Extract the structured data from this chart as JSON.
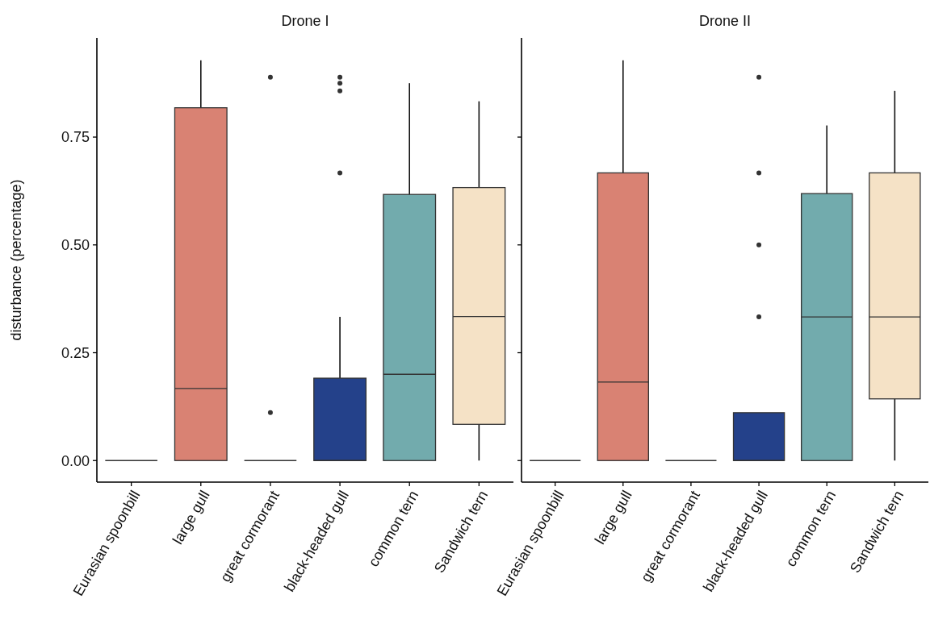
{
  "chart_data": [
    {
      "type": "box",
      "title": "Drone I",
      "ylabel": "disturbance (percentage)",
      "categories": [
        "Eurasian spoonbill",
        "large gull",
        "great cormorant",
        "black-headed gull",
        "common tern",
        "Sandwich tern"
      ],
      "colors": [
        "#333333",
        "#d98273",
        "#333333",
        "#24418a",
        "#72abad",
        "#f5e2c6"
      ],
      "boxes": [
        {
          "low": 0,
          "q1": 0,
          "median": 0,
          "q3": 0,
          "high": 0
        },
        {
          "low": 0,
          "q1": 0,
          "median": 0.167,
          "q3": 0.818,
          "high": 0.928
        },
        {
          "low": 0,
          "q1": 0,
          "median": 0,
          "q3": 0,
          "high": 0,
          "outliers": [
            0.111,
            0.889
          ]
        },
        {
          "low": 0,
          "q1": 0,
          "median": 0,
          "q3": 0.191,
          "high": 0.333,
          "outliers": [
            0.667,
            0.857,
            0.875,
            0.889
          ]
        },
        {
          "low": 0,
          "q1": 0,
          "median": 0.2,
          "q3": 0.617,
          "high": 0.875
        },
        {
          "low": 0,
          "q1": 0.084,
          "median": 0.334,
          "q3": 0.633,
          "high": 0.833
        }
      ],
      "ylim": [
        -0.05,
        0.98
      ],
      "yticks": [
        {
          "value": 0,
          "label": "0.00"
        },
        {
          "value": 0.25,
          "label": "0.25"
        },
        {
          "value": 0.5,
          "label": "0.50"
        },
        {
          "value": 0.75,
          "label": "0.75"
        }
      ],
      "grid": false
    },
    {
      "type": "box",
      "title": "Drone II",
      "categories": [
        "Eurasian spoonbill",
        "large gull",
        "great cormorant",
        "black-headed gull",
        "common tern",
        "Sandwich tern"
      ],
      "colors": [
        "#333333",
        "#d98273",
        "#333333",
        "#24418a",
        "#72abad",
        "#f5e2c6"
      ],
      "boxes": [
        {
          "low": 0,
          "q1": 0,
          "median": 0,
          "q3": 0,
          "high": 0
        },
        {
          "low": 0,
          "q1": 0,
          "median": 0.182,
          "q3": 0.667,
          "high": 0.928
        },
        {
          "low": 0,
          "q1": 0,
          "median": 0,
          "q3": 0,
          "high": 0
        },
        {
          "low": 0,
          "q1": 0,
          "median": 0,
          "q3": 0.111,
          "high": 0.111,
          "outliers": [
            0.333,
            0.5,
            0.667,
            0.889
          ]
        },
        {
          "low": 0,
          "q1": 0,
          "median": 0.333,
          "q3": 0.619,
          "high": 0.777
        },
        {
          "low": 0,
          "q1": 0.143,
          "median": 0.333,
          "q3": 0.667,
          "high": 0.857
        }
      ],
      "ylim": [
        -0.05,
        0.98
      ],
      "yticks": [
        {
          "value": 0,
          "label": null
        },
        {
          "value": 0.25,
          "label": null
        },
        {
          "value": 0.5,
          "label": null
        },
        {
          "value": 0.75,
          "label": null
        }
      ],
      "tick_labels": "x",
      "grid": false
    }
  ]
}
